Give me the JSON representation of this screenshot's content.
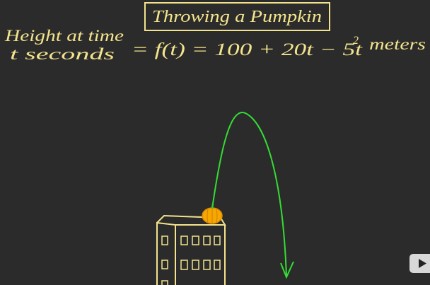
{
  "title": "Throwing a Pumpkin",
  "label": {
    "line1": "Height at time",
    "line2": "t seconds"
  },
  "formula": {
    "main": "= f(t) = 100 + 20t − 5t",
    "exponent": "2",
    "unit": "meters"
  }
}
